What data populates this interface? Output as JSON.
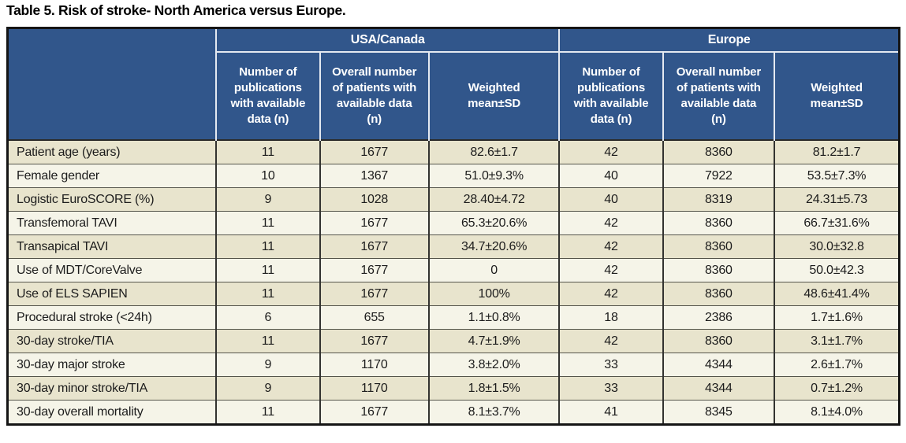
{
  "title": "Table 5. Risk of stroke- North America versus Europe.",
  "colors": {
    "header_bg": "#31568b",
    "header_text": "#ffffff",
    "header_divider": "#e4e9f1",
    "row_odd_bg": "#e8e4cd",
    "row_even_bg": "#f5f4e8",
    "body_text": "#1c1c1c",
    "outer_border": "#151515"
  },
  "table": {
    "group_headers": [
      "USA/Canada",
      "Europe"
    ],
    "sub_headers": [
      "Number of\npublications\nwith available\ndata (n)",
      "Overall number\nof patients with\navailable data\n(n)",
      "Weighted\nmean±SD",
      "Number of\npublications\nwith available\ndata (n)",
      "Overall number\nof patients with\navailable data\n(n)",
      "Weighted\nmean±SD"
    ],
    "rows": [
      {
        "label": "Patient age (years)",
        "values": [
          "11",
          "1677",
          "82.6±1.7",
          "42",
          "8360",
          "81.2±1.7"
        ]
      },
      {
        "label": "Female gender",
        "values": [
          "10",
          "1367",
          "51.0±9.3%",
          "40",
          "7922",
          "53.5±7.3%"
        ]
      },
      {
        "label": "Logistic EuroSCORE (%)",
        "values": [
          "9",
          "1028",
          "28.40±4.72",
          "40",
          "8319",
          "24.31±5.73"
        ]
      },
      {
        "label": "Transfemoral TAVI",
        "values": [
          "11",
          "1677",
          "65.3±20.6%",
          "42",
          "8360",
          "66.7±31.6%"
        ]
      },
      {
        "label": "Transapical TAVI",
        "values": [
          "11",
          "1677",
          "34.7±20.6%",
          "42",
          "8360",
          "30.0±32.8"
        ]
      },
      {
        "label": "Use of MDT/CoreValve",
        "values": [
          "11",
          "1677",
          "0",
          "42",
          "8360",
          "50.0±42.3"
        ]
      },
      {
        "label": "Use of ELS SAPIEN",
        "values": [
          "11",
          "1677",
          "100%",
          "42",
          "8360",
          "48.6±41.4%"
        ]
      },
      {
        "label": "Procedural stroke (<24h)",
        "values": [
          "6",
          "655",
          "1.1±0.8%",
          "18",
          "2386",
          "1.7±1.6%"
        ]
      },
      {
        "label": "30-day stroke/TIA",
        "values": [
          "11",
          "1677",
          "4.7±1.9%",
          "42",
          "8360",
          "3.1±1.7%"
        ]
      },
      {
        "label": "30-day major stroke",
        "values": [
          "9",
          "1170",
          "3.8±2.0%",
          "33",
          "4344",
          "2.6±1.7%"
        ]
      },
      {
        "label": "30-day minor stroke/TIA",
        "values": [
          "9",
          "1170",
          "1.8±1.5%",
          "33",
          "4344",
          "0.7±1.2%"
        ]
      },
      {
        "label": "30-day overall mortality",
        "values": [
          "11",
          "1677",
          "8.1±3.7%",
          "41",
          "8345",
          "8.1±4.0%"
        ]
      }
    ]
  }
}
